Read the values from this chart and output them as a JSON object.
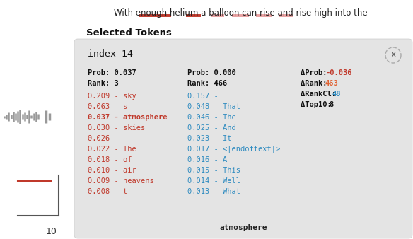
{
  "title_text": "With enough helium a balloon can rise and rise high into the",
  "underline_data": [
    [
      196,
      242,
      "#c0392b"
    ],
    [
      263,
      284,
      "#c0392b"
    ],
    [
      298,
      317,
      "#e8a0a0"
    ],
    [
      328,
      352,
      "#e8a0a0"
    ],
    [
      362,
      385,
      "#e8a0a0"
    ],
    [
      395,
      414,
      "#e8a0a0"
    ]
  ],
  "selected_tokens_label": "Selected Tokens",
  "card_bg": "#e4e4e4",
  "card_title": "index 14",
  "close_btn": "X",
  "prob_label1": "Prob: 0.037",
  "rank_label1": "Rank: 3",
  "prob_label2": "Prob: 0.000",
  "rank_label2": "Rank: 466",
  "delta_prob_label": "ΔProb: ",
  "delta_prob_value": "-0.036",
  "delta_rank_label": "ΔRank: ",
  "delta_rank_value": "463",
  "delta_rankCl_label": "ΔRankCl: ",
  "delta_rankCl_value": "48",
  "delta_top10_label": "ΔTop10: ",
  "delta_top10_value": "8",
  "col1_entries": [
    "0.209 - sky",
    "0.063 - s",
    "0.037 - atmosphere",
    "0.030 - skies",
    "0.026 -",
    "0.022 - The",
    "0.018 - of",
    "0.010 - air",
    "0.009 - heavens",
    "0.008 - t"
  ],
  "col2_entries": [
    "0.157 -",
    "0.048 - That",
    "0.046 - The",
    "0.025 - And",
    "0.023 - It",
    "0.017 - <|endoftext|>",
    "0.016 - A",
    "0.015 - This",
    "0.014 - Well",
    "0.013 - What"
  ],
  "bold_row": 2,
  "footer_word": "atmosphere",
  "col1_color": "#c0392b",
  "col2_color": "#2e8bc0",
  "delta_neg_color": "#c0392b",
  "delta_pos_color": "#e06030",
  "delta_blue_color": "#2e8bc0",
  "axis_tick": "10",
  "bg_color": "#ffffff",
  "bars_x": [
    8,
    13,
    18,
    23,
    28,
    33,
    38,
    43,
    48,
    53,
    58,
    63,
    68,
    73,
    78,
    83,
    88,
    93
  ],
  "bars_h": [
    14,
    8,
    16,
    22,
    18,
    20,
    14,
    10,
    24,
    12,
    18,
    6,
    16,
    10,
    8,
    4,
    12,
    8
  ]
}
